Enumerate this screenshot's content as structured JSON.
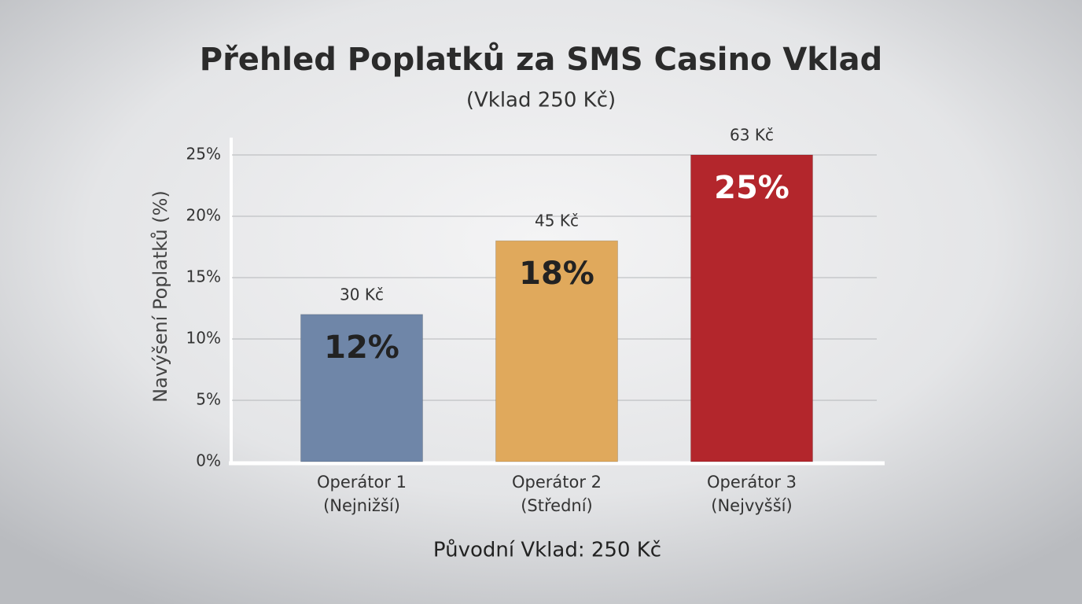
{
  "chart_data": {
    "type": "bar",
    "title": "Přehled Poplatků za SMS Casino Vklad",
    "subtitle": "(Vklad 250 Kč)",
    "x_label": "Původní Vklad: 250 Kč",
    "y_label": "Navýšení Poplatků (%)",
    "categories": [
      [
        "Operátor 1",
        "(Nejnižší)"
      ],
      [
        "Operátor 2",
        "(Střední)"
      ],
      [
        "Operátor 3",
        "(Nejvyšší)"
      ]
    ],
    "values": [
      12,
      18,
      25
    ],
    "value_labels": [
      "12%",
      "18%",
      "25%"
    ],
    "value_label_colors": [
      "#222222",
      "#222222",
      "#ffffff"
    ],
    "amount_labels": [
      "30 Kč",
      "45 Kč",
      "63 Kč"
    ],
    "colors": [
      "#6f86a8",
      "#e0a95c",
      "#b3262c"
    ],
    "ylim": [
      0,
      25
    ],
    "yticks": [
      {
        "value": 0,
        "label": "0%"
      },
      {
        "value": 5,
        "label": "5%"
      },
      {
        "value": 10,
        "label": "10%"
      },
      {
        "value": 15,
        "label": "15%"
      },
      {
        "value": 20,
        "label": "20%"
      },
      {
        "value": 25,
        "label": "25%"
      }
    ],
    "grid": true
  }
}
